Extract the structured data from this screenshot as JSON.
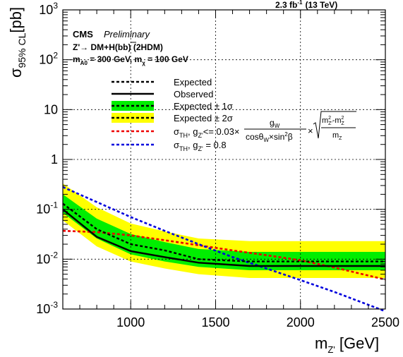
{
  "header": {
    "lumi": "2.3 fb",
    "lumi_sup": "-1",
    "energy": "(13 TeV)"
  },
  "labels": {
    "cms": "CMS",
    "preliminary": "Preliminary",
    "model": "Z'→ DM+H(bb) (2HDM)",
    "params_a": "m",
    "params_a_sub": "A0",
    "params_a_rest": " = 300 GeV, m",
    "params_chi_sub": "χ",
    "params_b_rest": " = 100 GeV",
    "xlabel_main": "m",
    "xlabel_sub": "Z'",
    "xlabel_unit": " [GeV]",
    "ylabel_main": "σ",
    "ylabel_sub": "95% CL",
    "ylabel_unit": "[pb]"
  },
  "legend": {
    "expected": "Expected",
    "observed": "Observed",
    "band1": "Expected ± 1σ",
    "band2": "Expected ± 2σ",
    "th1_prefix": "σ",
    "th1_sub": "TH",
    "th1_mid": ", g",
    "th1_sub2": "Z'",
    "th1_rest": "<= 0.03×",
    "frac_num": "g",
    "frac_num_sub": "W",
    "frac_den": "cosθ",
    "frac_den_sub": "W",
    "frac_den_rest": "×sin",
    "frac_den_sup": "2",
    "frac_den_end": "β",
    "times": "×",
    "sqrt_num": "m",
    "sqrt_num_sub1": "Z'",
    "sqrt_num_sup1": "2",
    "sqrt_minus": "-m",
    "sqrt_num_sub2": "Z",
    "sqrt_num_sup2": "2",
    "sqrt_den": "m",
    "sqrt_den_sub": "Z",
    "th2_prefix": "σ",
    "th2_sub": "TH",
    "th2_mid": ", g",
    "th2_sub2": "Z'",
    "th2_rest": " = 0.8"
  },
  "colors": {
    "band1": "#00ee00",
    "band2": "#ffff00",
    "th1": "#ee0000",
    "th2": "#0000dd"
  },
  "chart_data": {
    "type": "line",
    "xlim": [
      600,
      2500
    ],
    "ylim": [
      0.001,
      1000
    ],
    "yscale": "log",
    "x_ticks": [
      1000,
      1500,
      2000,
      2500
    ],
    "y_ticks": [
      {
        "value": 0.001,
        "base": "10",
        "exp": "-3"
      },
      {
        "value": 0.01,
        "base": "10",
        "exp": "-2"
      },
      {
        "value": 0.1,
        "base": "10",
        "exp": "-1"
      },
      {
        "value": 1,
        "base": "1",
        "exp": ""
      },
      {
        "value": 10,
        "base": "10",
        "exp": ""
      },
      {
        "value": 100,
        "base": "10",
        "exp": "2"
      },
      {
        "value": 1000,
        "base": "10",
        "exp": "3"
      }
    ],
    "grid": true,
    "x": [
      600,
      800,
      1000,
      1200,
      1400,
      1700,
      2000,
      2500
    ],
    "expected": [
      0.13,
      0.04,
      0.02,
      0.015,
      0.01,
      0.009,
      0.009,
      0.009
    ],
    "observed": [
      0.1,
      0.028,
      0.0145,
      0.011,
      0.0085,
      0.0073,
      0.0073,
      0.0073
    ],
    "band1_low": [
      0.085,
      0.026,
      0.0125,
      0.009,
      0.007,
      0.006,
      0.006,
      0.006
    ],
    "band1_high": [
      0.2,
      0.065,
      0.032,
      0.022,
      0.016,
      0.014,
      0.014,
      0.014
    ],
    "band2_low": [
      0.06,
      0.018,
      0.009,
      0.0065,
      0.005,
      0.0042,
      0.0042,
      0.0042
    ],
    "band2_high": [
      0.33,
      0.11,
      0.052,
      0.036,
      0.026,
      0.023,
      0.023,
      0.023
    ],
    "theory_th1": {
      "x": [
        600,
        800,
        1000,
        1200,
        1400,
        1600,
        1800,
        2000,
        2200,
        2500
      ],
      "y": [
        0.037,
        0.035,
        0.03,
        0.024,
        0.019,
        0.015,
        0.012,
        0.0095,
        0.0068,
        0.0039
      ]
    },
    "theory_th2": {
      "x": [
        600,
        800,
        1000,
        1200,
        1400,
        1600,
        1800,
        2000,
        2200,
        2500
      ],
      "y": [
        0.28,
        0.14,
        0.07,
        0.037,
        0.02,
        0.011,
        0.0065,
        0.0038,
        0.0022,
        0.0009
      ]
    }
  }
}
